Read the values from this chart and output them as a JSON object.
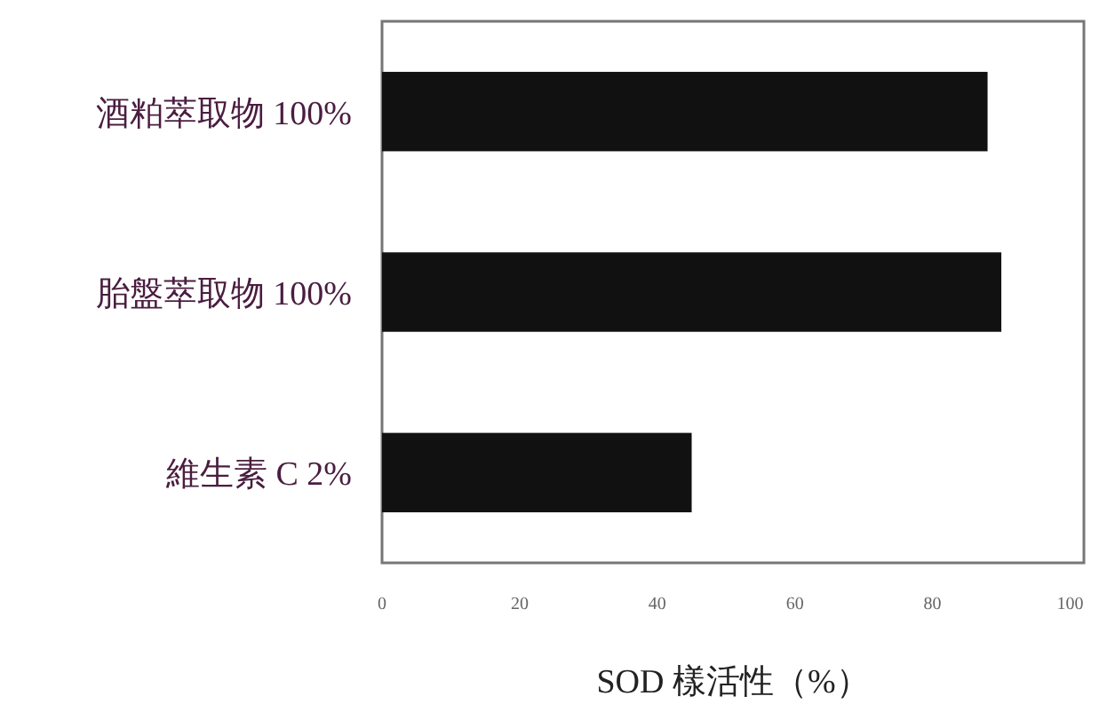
{
  "chart_data": {
    "type": "bar",
    "orientation": "horizontal",
    "categories": [
      "酒粕萃取物 100%",
      "胎盤萃取物 100%",
      "維生素 C 2%"
    ],
    "values": [
      88,
      90,
      45
    ],
    "color": "#111111",
    "xlabel": "SOD 樣活性（%）",
    "xlim": [
      0,
      102
    ],
    "xticks": [
      0,
      20,
      40,
      60,
      80,
      100
    ]
  }
}
